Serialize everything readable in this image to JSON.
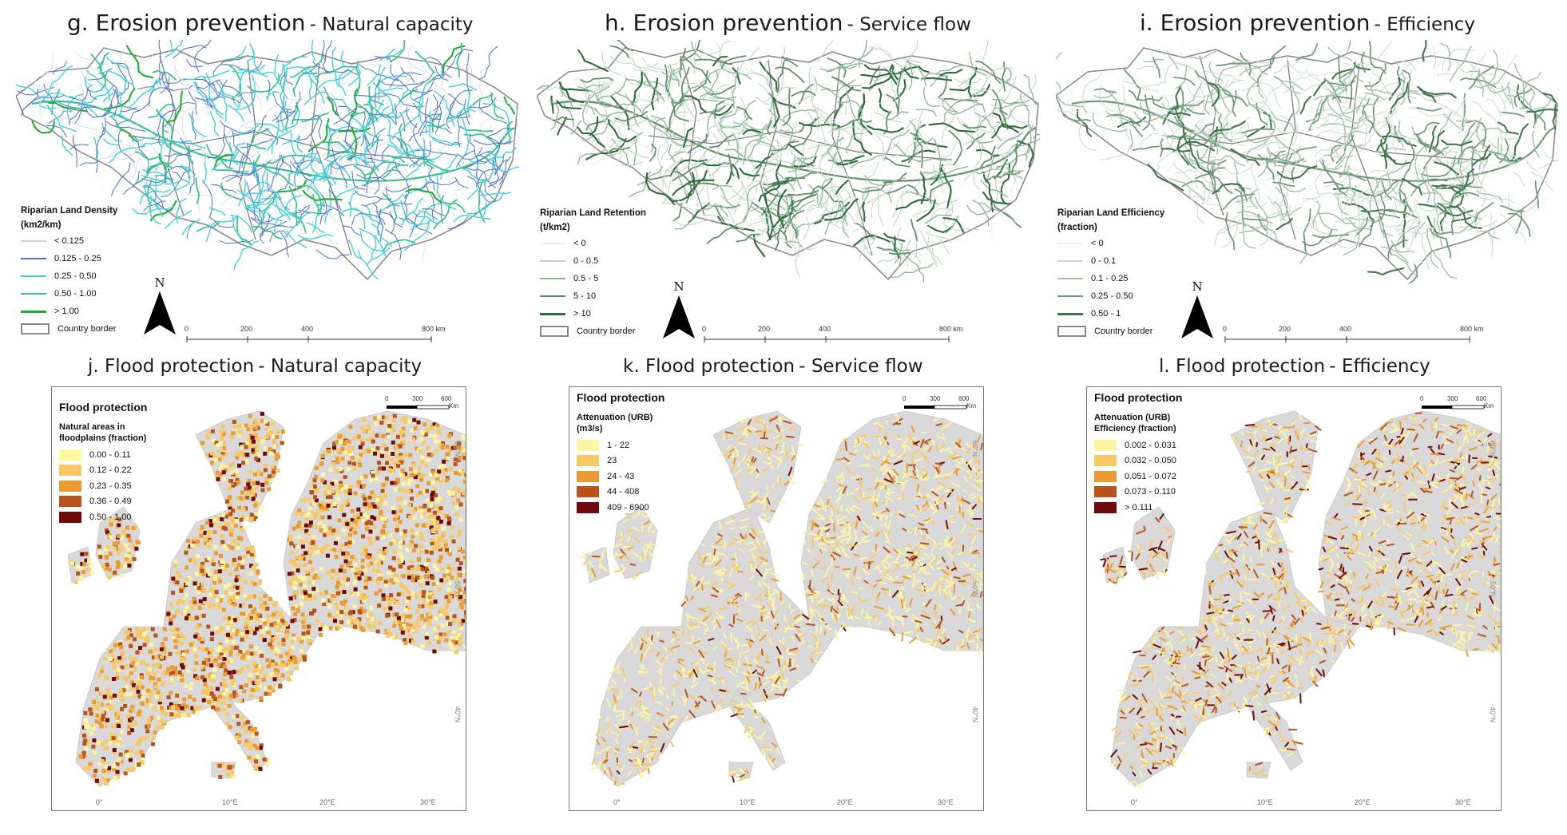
{
  "colors": {
    "erosion_capacity_classes": [
      "#c9d2e2",
      "#4f73d4",
      "#3fd0e0",
      "#39c28a",
      "#1fae2a"
    ],
    "erosion_flow_classes": [
      "#e6efe8",
      "#bcd7c1",
      "#8fb898",
      "#5f8f68",
      "#2e6b3a"
    ],
    "erosion_eff_classes": [
      "#eaf1eb",
      "#c7dccb",
      "#9fc1a6",
      "#6f9a78",
      "#3f7548"
    ],
    "flood_classes": [
      "#fff6a0",
      "#f7c864",
      "#ea9b32",
      "#b8541b",
      "#6e0a0a"
    ],
    "land_gray": "#d9d9d9",
    "border_gray": "#888888"
  },
  "panels": {
    "g": {
      "label": "g. Erosion prevention",
      "sub": "Natural capacity"
    },
    "h": {
      "label": "h. Erosion prevention",
      "sub": "Service flow"
    },
    "i": {
      "label": "i. Erosion prevention",
      "sub": "Efficiency"
    },
    "j": {
      "label": "j. Flood protection",
      "sub": "Natural capacity"
    },
    "k": {
      "label": "k. Flood protection",
      "sub": "Service flow"
    },
    "l": {
      "label": "l. Flood protection",
      "sub": "Efficiency"
    }
  },
  "erosion_legends": {
    "g": {
      "title1": "Riparian Land Density",
      "title2": "(km2/km)",
      "items": [
        "< 0.125",
        "0.125 - 0.25",
        "0.25 - 0.50",
        "0.50 - 1.00",
        "> 1.00"
      ],
      "border": "Country border"
    },
    "h": {
      "title1": "Riparian Land Retention",
      "title2": "(t/km2)",
      "items": [
        "< 0",
        "0 - 0.5",
        "0.5 - 5",
        "5 - 10",
        "> 10"
      ],
      "border": "Country border"
    },
    "i": {
      "title1": "Riparian Land Efficiency",
      "title2": "(fraction)",
      "items": [
        "< 0",
        "0 - 0.1",
        "0.1 - 0.25",
        "0.25 - 0.50",
        "0.50 - 1"
      ],
      "border": "Country border"
    }
  },
  "erosion_scale": {
    "north": "N",
    "ticks": [
      "0",
      "200",
      "400",
      "800 km"
    ]
  },
  "flood_legends": {
    "j": {
      "head": "Flood protection",
      "sub1": "Natural areas in",
      "sub2": "floodplains (fraction)",
      "items": [
        "0.00 - 0.11",
        "0.12 - 0.22",
        "0.23 - 0.35",
        "0.36 - 0.49",
        "0.50 - 1.00"
      ]
    },
    "k": {
      "head": "Flood protection",
      "sub1": "Attenuation (URB)",
      "sub2": "(m3/s)",
      "items": [
        "1 - 22",
        "23",
        "24 - 43",
        "44 - 408",
        "409 - 6900"
      ]
    },
    "l": {
      "head": "Flood protection",
      "sub1": "Attenuation (URB)",
      "sub2": "Efficiency (fraction)",
      "items": [
        "0.002 - 0.031",
        "0.032 - 0.050",
        "0.051 - 0.072",
        "0.073 - 0.110",
        "> 0.111"
      ]
    }
  },
  "flood_scale": {
    "ticks": [
      "0",
      "300",
      "600"
    ],
    "unit": "Km"
  },
  "flood_coords": {
    "bottom": [
      "0°",
      "10°E",
      "20°E",
      "30°E"
    ],
    "right": [
      "60°N",
      "50°N",
      "40°N"
    ]
  }
}
